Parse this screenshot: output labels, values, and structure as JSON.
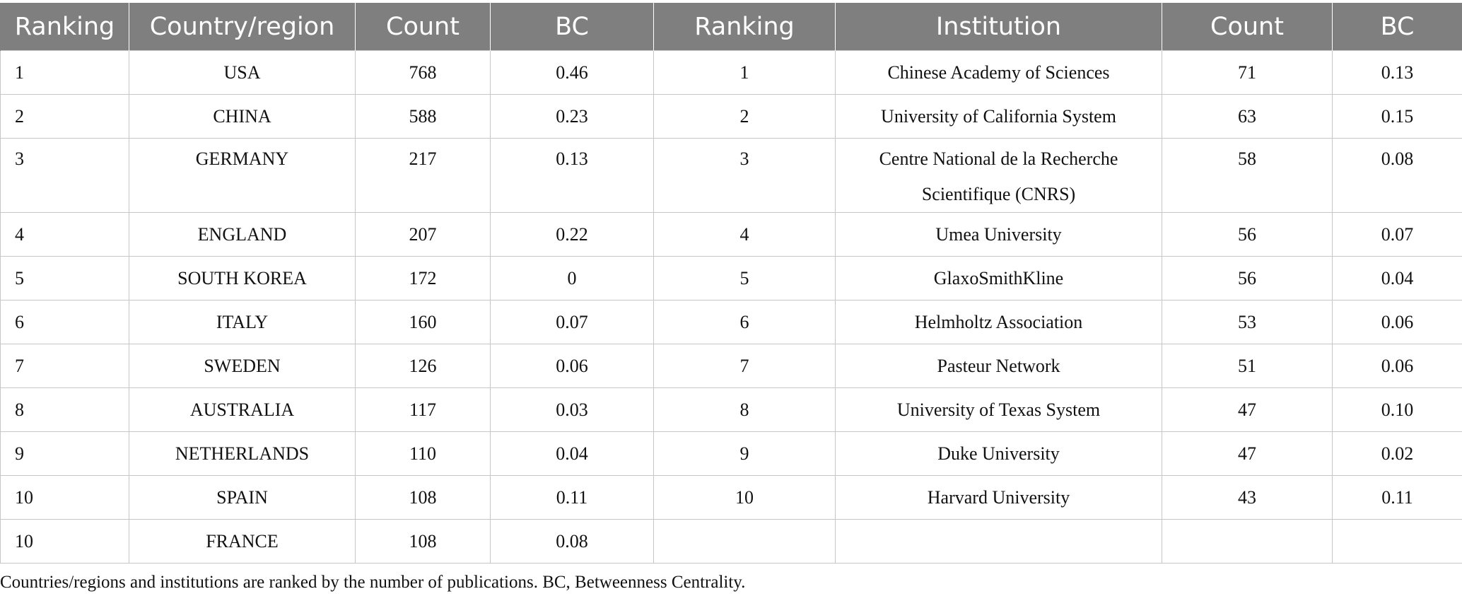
{
  "header": {
    "ranking_left": "Ranking",
    "country": "Country/region",
    "count_left": "Count",
    "bc_left": "BC",
    "ranking_right": "Ranking",
    "institution": "Institution",
    "count_right": "Count",
    "bc_right": "BC"
  },
  "rows": [
    {
      "rank": "1",
      "country": "USA",
      "ccount": "768",
      "cbc": "0.46",
      "irank": "1",
      "institution": "Chinese Academy of Sciences",
      "icount": "71",
      "ibc": "0.13"
    },
    {
      "rank": "2",
      "country": "CHINA",
      "ccount": "588",
      "cbc": "0.23",
      "irank": "2",
      "institution": "University of California System",
      "icount": "63",
      "ibc": "0.15"
    },
    {
      "rank": "3",
      "country": "GERMANY",
      "ccount": "217",
      "cbc": "0.13",
      "irank": "3",
      "institution": "Centre National de la Recherche Scientifique (CNRS)",
      "icount": "58",
      "ibc": "0.08"
    },
    {
      "rank": "4",
      "country": "ENGLAND",
      "ccount": "207",
      "cbc": "0.22",
      "irank": "4",
      "institution": "Umea University",
      "icount": "56",
      "ibc": "0.07"
    },
    {
      "rank": "5",
      "country": "SOUTH KOREA",
      "ccount": "172",
      "cbc": "0",
      "irank": "5",
      "institution": "GlaxoSmithKline",
      "icount": "56",
      "ibc": "0.04"
    },
    {
      "rank": "6",
      "country": "ITALY",
      "ccount": "160",
      "cbc": "0.07",
      "irank": "6",
      "institution": "Helmholtz Association",
      "icount": "53",
      "ibc": "0.06"
    },
    {
      "rank": "7",
      "country": "SWEDEN",
      "ccount": "126",
      "cbc": "0.06",
      "irank": "7",
      "institution": "Pasteur Network",
      "icount": "51",
      "ibc": "0.06"
    },
    {
      "rank": "8",
      "country": "AUSTRALIA",
      "ccount": "117",
      "cbc": "0.03",
      "irank": "8",
      "institution": "University of Texas System",
      "icount": "47",
      "ibc": "0.10"
    },
    {
      "rank": "9",
      "country": "NETHERLANDS",
      "ccount": "110",
      "cbc": "0.04",
      "irank": "9",
      "institution": "Duke University",
      "icount": "47",
      "ibc": "0.02"
    },
    {
      "rank": "10",
      "country": "SPAIN",
      "ccount": "108",
      "cbc": "0.11",
      "irank": "10",
      "institution": "Harvard University",
      "icount": "43",
      "ibc": "0.11"
    },
    {
      "rank": "10",
      "country": "FRANCE",
      "ccount": "108",
      "cbc": "0.08",
      "irank": "",
      "institution": "",
      "icount": "",
      "ibc": ""
    }
  ],
  "footnote": "Countries/regions and institutions are ranked by the number of publications. BC, Betweenness Centrality.",
  "colors": {
    "header_bg": "#7f7f7f",
    "header_text": "#ffffff",
    "grid_line": "#c6c6c6"
  }
}
